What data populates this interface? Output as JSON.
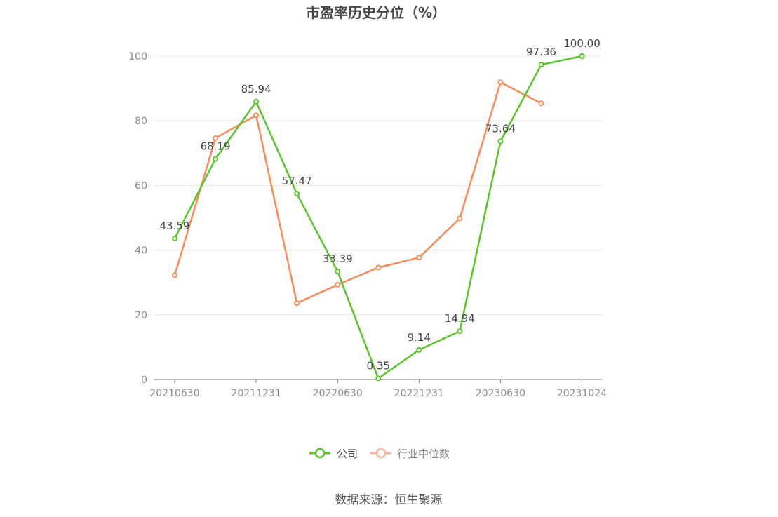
{
  "chart_data": {
    "type": "line",
    "title": "市盈率历史分位（%）",
    "x": [
      "20210630",
      "20210930",
      "20211231",
      "20220331",
      "20220630",
      "20220930",
      "20221231",
      "20230331",
      "20230630",
      "20230930",
      "20231024"
    ],
    "x_tick_labels": [
      "20210630",
      "20211231",
      "20220630",
      "20221231",
      "20230630",
      "20231024"
    ],
    "ylim": [
      0,
      100
    ],
    "y_ticks": [
      0,
      20,
      40,
      60,
      80,
      100
    ],
    "grid": true,
    "legend_position": "bottom",
    "series": [
      {
        "name": "公司",
        "color": "#5ac42f",
        "values": [
          43.59,
          68.19,
          85.94,
          57.47,
          33.39,
          0.35,
          9.14,
          14.94,
          73.64,
          97.36,
          100.0
        ],
        "labels": [
          "43.59",
          "68.19",
          "85.94",
          "57.47",
          "33.39",
          "0.35",
          "9.14",
          "14.94",
          "73.64",
          "97.36",
          "100.00"
        ]
      },
      {
        "name": "行业中位数",
        "color": "#f58c5a",
        "values": [
          32.2,
          74.6,
          81.7,
          23.6,
          29.3,
          34.6,
          37.7,
          49.8,
          91.9,
          85.4,
          null
        ]
      }
    ]
  },
  "legend": {
    "inactive_text_color": "#8c8c8c",
    "active_text_color": "#464646"
  },
  "source": "数据来源：恒生聚源"
}
